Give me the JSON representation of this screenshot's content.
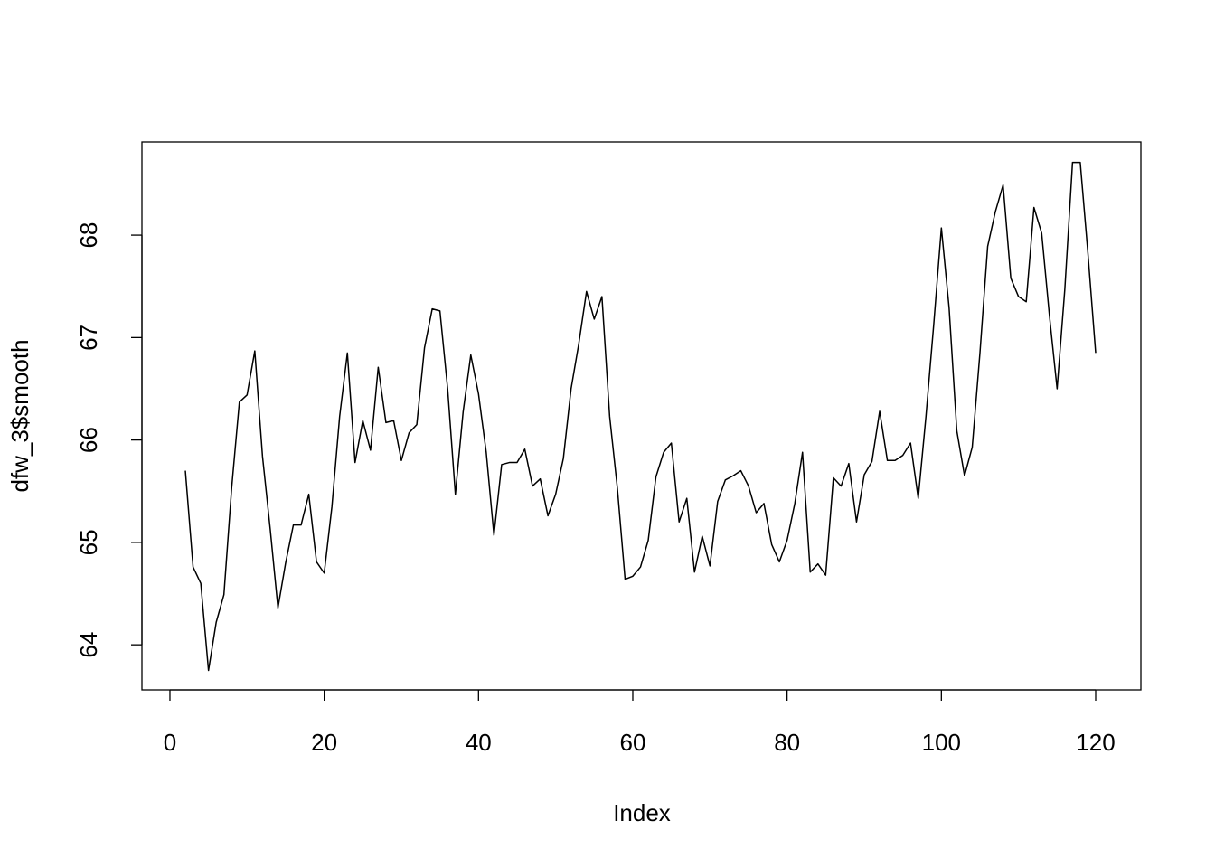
{
  "chart_data": {
    "type": "line",
    "x_label": "Index",
    "y_label": "dfw_3$smooth",
    "x": [
      2,
      3,
      4,
      5,
      6,
      7,
      8,
      9,
      10,
      11,
      12,
      13,
      14,
      15,
      16,
      17,
      18,
      19,
      20,
      21,
      22,
      23,
      24,
      25,
      26,
      27,
      28,
      29,
      30,
      31,
      32,
      33,
      34,
      35,
      36,
      37,
      38,
      39,
      40,
      41,
      42,
      43,
      44,
      45,
      46,
      47,
      48,
      49,
      50,
      51,
      52,
      53,
      54,
      55,
      56,
      57,
      58,
      59,
      60,
      61,
      62,
      63,
      64,
      65,
      66,
      67,
      68,
      69,
      70,
      71,
      72,
      73,
      74,
      75,
      76,
      77,
      78,
      79,
      80,
      81,
      82,
      83,
      84,
      85,
      86,
      87,
      88,
      89,
      90,
      91,
      92,
      93,
      94,
      95,
      96,
      97,
      98,
      99,
      100,
      101,
      102,
      103,
      104,
      105,
      106,
      107,
      108,
      109,
      110,
      111,
      112,
      113,
      114,
      115,
      116,
      117,
      118,
      119,
      120
    ],
    "series": [
      {
        "color": "#000000",
        "values": [
          65.7,
          64.76,
          64.6,
          63.75,
          64.22,
          64.49,
          65.53,
          66.37,
          66.44,
          66.87,
          65.84,
          65.13,
          64.36,
          64.8,
          65.17,
          65.17,
          65.47,
          64.81,
          64.7,
          65.35,
          66.23,
          66.85,
          65.78,
          66.19,
          65.9,
          66.71,
          66.17,
          66.19,
          65.8,
          66.07,
          66.15,
          66.9,
          67.28,
          67.26,
          66.5,
          65.47,
          66.27,
          66.83,
          66.45,
          65.88,
          65.07,
          65.76,
          65.78,
          65.78,
          65.91,
          65.55,
          65.62,
          65.26,
          65.47,
          65.82,
          66.5,
          66.94,
          67.45,
          67.18,
          67.4,
          66.23,
          65.53,
          64.64,
          64.67,
          64.76,
          65.02,
          65.64,
          65.88,
          65.97,
          65.2,
          65.43,
          64.71,
          65.06,
          64.77,
          65.4,
          65.61,
          65.65,
          65.7,
          65.55,
          65.29,
          65.38,
          64.98,
          64.81,
          65.02,
          65.38,
          65.88,
          64.71,
          64.79,
          64.68,
          65.63,
          65.55,
          65.77,
          65.2,
          65.66,
          65.79,
          66.28,
          65.8,
          65.8,
          65.85,
          65.97,
          65.43,
          66.23,
          67.12,
          68.07,
          67.29,
          66.09,
          65.65,
          65.93,
          66.85,
          67.89,
          68.23,
          68.49,
          67.58,
          67.4,
          67.35,
          68.27,
          68.02,
          67.22,
          66.5,
          67.47,
          68.71,
          68.71,
          67.82,
          66.85
        ]
      }
    ],
    "xlim": [
      -3.63,
      125.86
    ],
    "ylim": [
      63.56,
      68.91
    ],
    "xticks": [
      0,
      20,
      40,
      60,
      80,
      100,
      120
    ],
    "yticks": [
      64,
      65,
      66,
      67,
      68
    ]
  }
}
